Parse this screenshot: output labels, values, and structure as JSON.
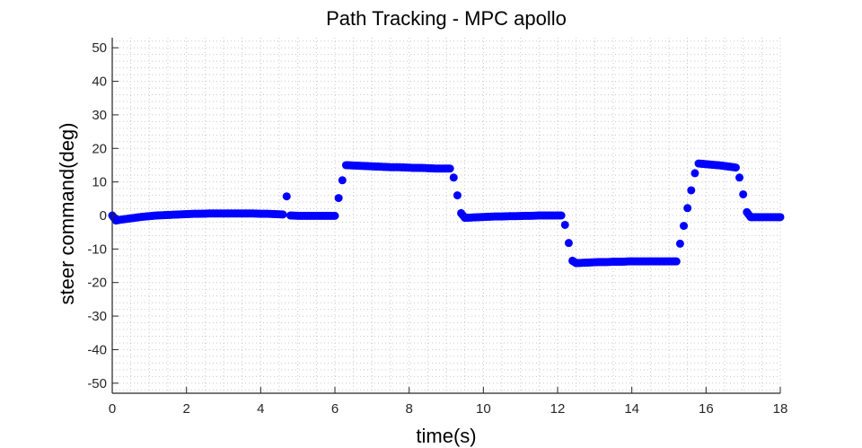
{
  "chart_data": {
    "type": "scatter",
    "title": "Path Tracking - MPC apollo",
    "xlabel": "time(s)",
    "ylabel": "steer command(deg)",
    "xlim": [
      0,
      18
    ],
    "ylim": [
      -53,
      53
    ],
    "xticks": [
      0,
      2,
      4,
      6,
      8,
      10,
      12,
      14,
      16,
      18
    ],
    "yticks": [
      -50,
      -40,
      -30,
      -20,
      -10,
      0,
      10,
      20,
      30,
      40,
      50
    ],
    "grid": "major+minor dotted",
    "legend": null,
    "marker_color": "#0000ff",
    "series": [
      {
        "name": "steer command",
        "x": [
          0,
          0.1,
          0.2,
          0.4,
          0.6,
          0.8,
          1.0,
          1.2,
          1.4,
          1.6,
          1.8,
          2.0,
          2.2,
          2.4,
          2.6,
          2.8,
          3.0,
          3.2,
          3.4,
          3.6,
          3.8,
          4.0,
          4.2,
          4.4,
          4.6,
          4.7,
          4.8,
          5.0,
          5.2,
          5.4,
          5.6,
          5.8,
          6.0,
          6.1,
          6.2,
          6.3,
          6.5,
          6.7,
          6.9,
          7.1,
          7.3,
          7.5,
          7.7,
          7.9,
          8.1,
          8.3,
          8.5,
          8.7,
          8.9,
          9.1,
          9.2,
          9.3,
          9.4,
          9.5,
          9.7,
          9.9,
          10.1,
          10.3,
          10.5,
          10.7,
          10.9,
          11.1,
          11.3,
          11.5,
          11.7,
          11.9,
          12.1,
          12.2,
          12.3,
          12.4,
          12.5,
          12.7,
          12.9,
          13.1,
          13.3,
          13.5,
          13.7,
          13.9,
          14.1,
          14.3,
          14.5,
          14.7,
          14.9,
          15.1,
          15.2,
          15.3,
          15.4,
          15.5,
          15.6,
          15.7,
          15.8,
          16.0,
          16.2,
          16.4,
          16.6,
          16.8,
          16.9,
          17.0,
          17.1,
          17.2,
          17.3,
          17.5,
          17.7,
          17.9,
          18.0
        ],
        "y": [
          0,
          -1.5,
          -1.3,
          -1.0,
          -0.7,
          -0.4,
          -0.2,
          0.0,
          0.1,
          0.2,
          0.3,
          0.4,
          0.5,
          0.5,
          0.6,
          0.6,
          0.6,
          0.6,
          0.6,
          0.6,
          0.6,
          0.5,
          0.5,
          0.4,
          0.3,
          5.7,
          0.0,
          -0.1,
          -0.1,
          -0.1,
          -0.1,
          -0.1,
          -0.1,
          5.2,
          10.5,
          15.0,
          14.9,
          14.8,
          14.7,
          14.6,
          14.5,
          14.4,
          14.4,
          14.3,
          14.2,
          14.2,
          14.1,
          14.0,
          14.0,
          14.0,
          11.3,
          6.0,
          0.7,
          -0.7,
          -0.6,
          -0.5,
          -0.4,
          -0.3,
          -0.3,
          -0.2,
          -0.2,
          -0.1,
          -0.1,
          0.0,
          0.0,
          0.0,
          0.0,
          -2.8,
          -8.2,
          -13.5,
          -14.2,
          -14.1,
          -14.0,
          -13.9,
          -13.9,
          -13.8,
          -13.8,
          -13.7,
          -13.7,
          -13.7,
          -13.7,
          -13.7,
          -13.7,
          -13.7,
          -13.7,
          -8.4,
          -3.1,
          2.2,
          7.5,
          12.6,
          15.5,
          15.3,
          15.1,
          14.9,
          14.6,
          14.3,
          11.3,
          6.3,
          1.0,
          -0.5,
          -0.5,
          -0.5,
          -0.5,
          -0.5,
          -0.5
        ]
      }
    ]
  }
}
